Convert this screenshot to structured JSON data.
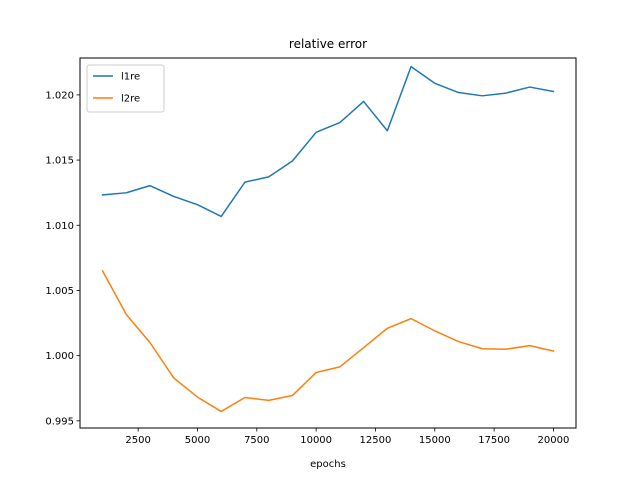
{
  "chart_data": {
    "type": "line",
    "title": "relative error",
    "xlabel": "epochs",
    "ylabel": "",
    "xlim": [
      50,
      20950
    ],
    "ylim": [
      0.99445,
      1.02283
    ],
    "xticks": [
      2500,
      5000,
      7500,
      10000,
      12500,
      15000,
      17500,
      20000
    ],
    "xtick_labels": [
      "2500",
      "5000",
      "7500",
      "10000",
      "12500",
      "15000",
      "17500",
      "20000"
    ],
    "yticks": [
      0.995,
      1.0,
      1.005,
      1.01,
      1.015,
      1.02
    ],
    "ytick_labels": [
      "0.995",
      "1.000",
      "1.005",
      "1.010",
      "1.015",
      "1.020"
    ],
    "grid": false,
    "legend_position": "top-left",
    "x": [
      1000,
      2000,
      3000,
      4000,
      5000,
      6000,
      7000,
      8000,
      9000,
      10000,
      11000,
      12000,
      13000,
      14000,
      15000,
      16000,
      17000,
      18000,
      19000,
      20000
    ],
    "series": [
      {
        "name": "l1re",
        "color": "#1f77b4",
        "values": [
          1.01233,
          1.01249,
          1.01304,
          1.01221,
          1.01158,
          1.01068,
          1.01331,
          1.01371,
          1.01493,
          1.01713,
          1.01788,
          1.0195,
          1.01725,
          1.02217,
          1.02089,
          1.02018,
          1.01993,
          1.02014,
          1.0206,
          1.02026
        ]
      },
      {
        "name": "l2re",
        "color": "#ff7f0e",
        "values": [
          1.0065,
          1.00316,
          1.001,
          0.99829,
          0.99682,
          0.99572,
          0.99679,
          0.99657,
          0.99694,
          0.99871,
          0.99914,
          1.00061,
          1.0021,
          1.00284,
          1.0019,
          1.00108,
          1.00053,
          1.00049,
          1.00077,
          1.00035
        ]
      }
    ]
  }
}
